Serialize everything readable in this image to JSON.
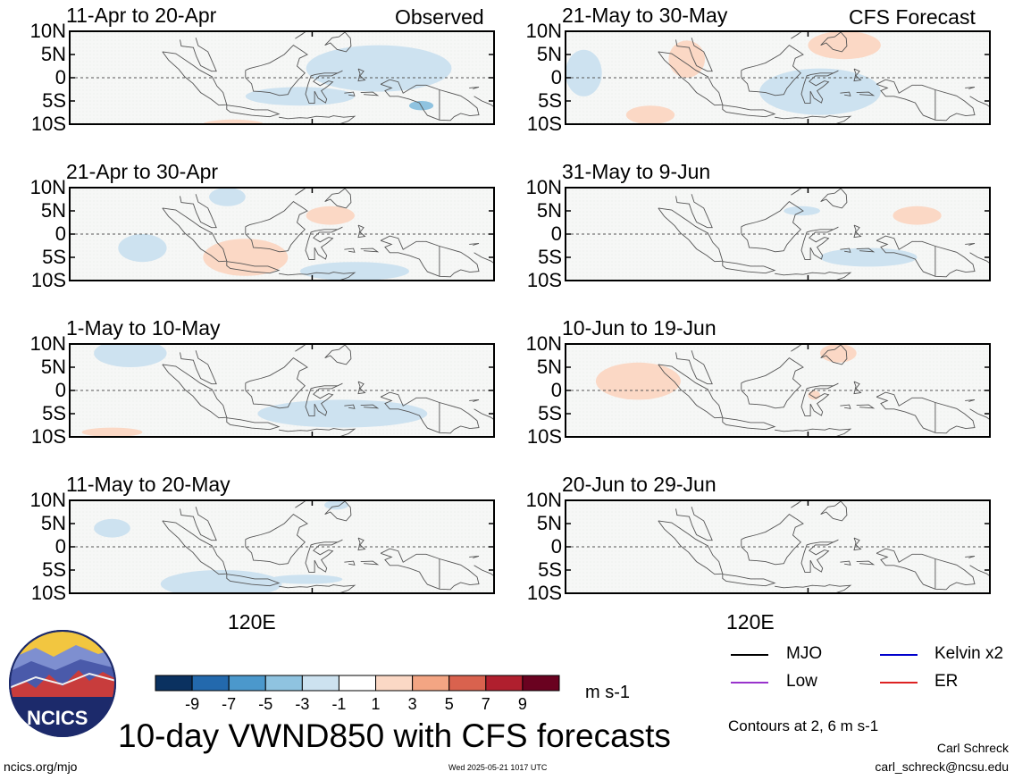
{
  "page": {
    "main_title": "10-day VWND850 with CFS forecasts",
    "observed_label": "Observed",
    "forecast_label": "CFS Forecast",
    "x_tick_left": "120E",
    "x_tick_right": "120E",
    "units": "m s-1",
    "contours_note": "Contours at 2, 6 m s-1",
    "author": "Carl Schreck",
    "email": "carl_schreck@ncsu.edu",
    "site": "ncics.org/mjo",
    "timestamp": "Wed 2025-05-21 1017 UTC",
    "logo_text": "NCICS"
  },
  "y_ticks": [
    "10N",
    "5N",
    "0",
    "5S",
    "10S"
  ],
  "legend": [
    {
      "label": "MJO",
      "color": "#000000"
    },
    {
      "label": "Kelvin x2",
      "color": "#0000cc"
    },
    {
      "label": "Low",
      "color": "#9933cc"
    },
    {
      "label": "ER",
      "color": "#dd2222"
    }
  ],
  "colorbar": {
    "colors": [
      "#0a3160",
      "#2369ad",
      "#4b98cc",
      "#8fc3e0",
      "#cde2f0",
      "#ffffff",
      "#fbd8c5",
      "#f3a583",
      "#d9624e",
      "#b01f2e",
      "#6a0220"
    ],
    "labels": [
      "-9",
      "-7",
      "-5",
      "-3",
      "-1",
      "1",
      "3",
      "5",
      "7",
      "9"
    ]
  },
  "chart_data": [
    {
      "type": "heatmap",
      "title": "11-Apr to 20-Apr",
      "xlabel": "",
      "ylabel": "",
      "ylim": [
        -10,
        10
      ],
      "y_ticks": [
        "10N",
        "5N",
        "0",
        "5S",
        "10S"
      ],
      "x_ticks": [
        "120E"
      ],
      "fields": [
        {
          "bin": "-3 to -1",
          "lon": 131,
          "lat": 2,
          "rx": 12,
          "ry": 5
        },
        {
          "bin": "-3 to -1",
          "lon": 118,
          "lat": -4,
          "rx": 9,
          "ry": 2
        },
        {
          "bin": "-5 to -3",
          "lon": 138,
          "lat": -6,
          "rx": 2,
          "ry": 1
        },
        {
          "bin": "1 to 3",
          "lon": 107,
          "lat": -10,
          "rx": 5,
          "ry": 1
        }
      ]
    },
    {
      "type": "heatmap",
      "title": "21-Apr to 30-Apr",
      "xlabel": "",
      "ylabel": "",
      "ylim": [
        -10,
        10
      ],
      "y_ticks": [
        "10N",
        "5N",
        "0",
        "5S",
        "10S"
      ],
      "x_ticks": [
        "120E"
      ],
      "fields": [
        {
          "bin": "1 to 3",
          "lon": 109,
          "lat": -5,
          "rx": 7,
          "ry": 4
        },
        {
          "bin": "1 to 3",
          "lon": 123,
          "lat": 4,
          "rx": 4,
          "ry": 2
        },
        {
          "bin": "-3 to -1",
          "lon": 92,
          "lat": -3,
          "rx": 4,
          "ry": 3
        },
        {
          "bin": "-3 to -1",
          "lon": 127,
          "lat": -8,
          "rx": 9,
          "ry": 2
        },
        {
          "bin": "-3 to -1",
          "lon": 106,
          "lat": 8,
          "rx": 3,
          "ry": 2
        }
      ]
    },
    {
      "type": "heatmap",
      "title": "1-May to 10-May",
      "xlabel": "",
      "ylabel": "",
      "ylim": [
        -10,
        10
      ],
      "y_ticks": [
        "10N",
        "5N",
        "0",
        "5S",
        "10S"
      ],
      "x_ticks": [
        "120E"
      ],
      "fields": [
        {
          "bin": "-3 to -1",
          "lon": 90,
          "lat": 8,
          "rx": 6,
          "ry": 3
        },
        {
          "bin": "-3 to -1",
          "lon": 125,
          "lat": -5,
          "rx": 14,
          "ry": 3
        },
        {
          "bin": "1 to 3",
          "lon": 87,
          "lat": -9,
          "rx": 5,
          "ry": 1
        }
      ]
    },
    {
      "type": "heatmap",
      "title": "11-May to 20-May",
      "xlabel": "",
      "ylabel": "",
      "ylim": [
        -10,
        10
      ],
      "y_ticks": [
        "10N",
        "5N",
        "0",
        "5S",
        "10S"
      ],
      "x_ticks": [
        "120E"
      ],
      "fields": [
        {
          "bin": "-3 to -1",
          "lon": 87,
          "lat": 4,
          "rx": 3,
          "ry": 2
        },
        {
          "bin": "-3 to -1",
          "lon": 105,
          "lat": -8,
          "rx": 10,
          "ry": 3
        },
        {
          "bin": "-3 to -1",
          "lon": 119,
          "lat": -7,
          "rx": 6,
          "ry": 1
        },
        {
          "bin": "-3 to -1",
          "lon": 124,
          "lat": 9,
          "rx": 2,
          "ry": 1
        }
      ]
    },
    {
      "type": "heatmap",
      "title": "21-May to 30-May",
      "xlabel": "",
      "ylabel": "",
      "ylim": [
        -10,
        10
      ],
      "y_ticks": [
        "10N",
        "5N",
        "0",
        "5S",
        "10S"
      ],
      "x_ticks": [
        "120E"
      ],
      "fields": [
        {
          "bin": "-3 to -1",
          "lon": 122,
          "lat": -3,
          "rx": 10,
          "ry": 5
        },
        {
          "bin": "-3 to -1",
          "lon": 83,
          "lat": 1,
          "rx": 3,
          "ry": 5
        },
        {
          "bin": "1 to 3",
          "lon": 100,
          "lat": 4,
          "rx": 3,
          "ry": 4
        },
        {
          "bin": "1 to 3",
          "lon": 126,
          "lat": 7,
          "rx": 6,
          "ry": 3
        },
        {
          "bin": "1 to 3",
          "lon": 94,
          "lat": -8,
          "rx": 4,
          "ry": 2
        }
      ]
    },
    {
      "type": "heatmap",
      "title": "31-May to 9-Jun",
      "xlabel": "",
      "ylabel": "",
      "ylim": [
        -10,
        10
      ],
      "y_ticks": [
        "10N",
        "5N",
        "0",
        "5S",
        "10S"
      ],
      "x_ticks": [
        "120E"
      ],
      "fields": [
        {
          "bin": "-3 to -1",
          "lon": 130,
          "lat": -5,
          "rx": 8,
          "ry": 2
        },
        {
          "bin": "-3 to -1",
          "lon": 119,
          "lat": 5,
          "rx": 3,
          "ry": 1
        },
        {
          "bin": "1 to 3",
          "lon": 138,
          "lat": 4,
          "rx": 4,
          "ry": 2
        }
      ]
    },
    {
      "type": "heatmap",
      "title": "10-Jun to 19-Jun",
      "xlabel": "",
      "ylabel": "",
      "ylim": [
        -10,
        10
      ],
      "y_ticks": [
        "10N",
        "5N",
        "0",
        "5S",
        "10S"
      ],
      "x_ticks": [
        "120E"
      ],
      "fields": [
        {
          "bin": "1 to 3",
          "lon": 92,
          "lat": 2,
          "rx": 7,
          "ry": 4
        },
        {
          "bin": "1 to 3",
          "lon": 125,
          "lat": 8,
          "rx": 3,
          "ry": 2
        },
        {
          "bin": "1 to 3",
          "lon": 121,
          "lat": -1,
          "rx": 1,
          "ry": 1
        }
      ]
    },
    {
      "type": "heatmap",
      "title": "20-Jun to 29-Jun",
      "xlabel": "",
      "ylabel": "",
      "ylim": [
        -10,
        10
      ],
      "y_ticks": [
        "10N",
        "5N",
        "0",
        "5S",
        "10S"
      ],
      "x_ticks": [
        "120E"
      ],
      "fields": []
    }
  ]
}
